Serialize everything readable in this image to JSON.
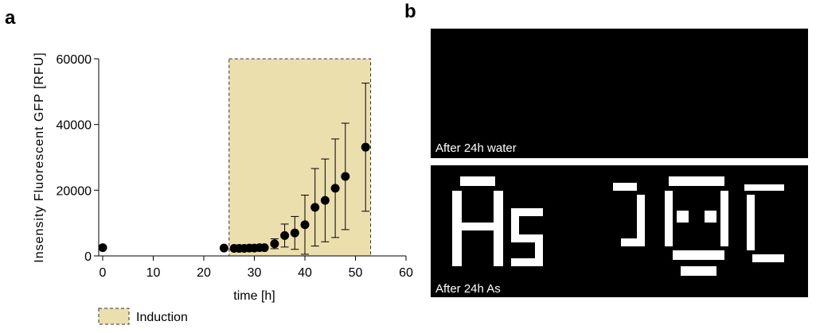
{
  "panel_labels": [
    "a",
    "b"
  ],
  "chart_data": {
    "type": "scatter",
    "x_label": "time [h]",
    "y_label": "Insensity Fluorescent GFP [RFU]",
    "xlim": [
      0,
      60
    ],
    "xticks": [
      0,
      10,
      20,
      30,
      40,
      50,
      60
    ],
    "ylim": [
      0,
      60000
    ],
    "yticks": [
      0,
      20000,
      40000,
      60000
    ],
    "shade": {
      "xlim": [
        25,
        53
      ],
      "label": "Induction",
      "color": "#ecdfae"
    },
    "series": [
      {
        "color": "#000000",
        "x": [
          0,
          24,
          26,
          27,
          28,
          29,
          30,
          31,
          32,
          34,
          36,
          38,
          40,
          42,
          44,
          46,
          48,
          52
        ],
        "values": [
          2500,
          2400,
          2300,
          2300,
          2300,
          2400,
          2400,
          2500,
          2500,
          3700,
          6200,
          7000,
          9500,
          14800,
          16900,
          20600,
          24200,
          33100
        ],
        "errors": [
          null,
          null,
          null,
          null,
          null,
          null,
          null,
          null,
          null,
          1500,
          3500,
          5000,
          9000,
          11800,
          12600,
          15000,
          16200,
          19500
        ]
      }
    ]
  },
  "images": [
    {
      "caption": "After 24h water"
    },
    {
      "caption": "After 24h As"
    }
  ]
}
